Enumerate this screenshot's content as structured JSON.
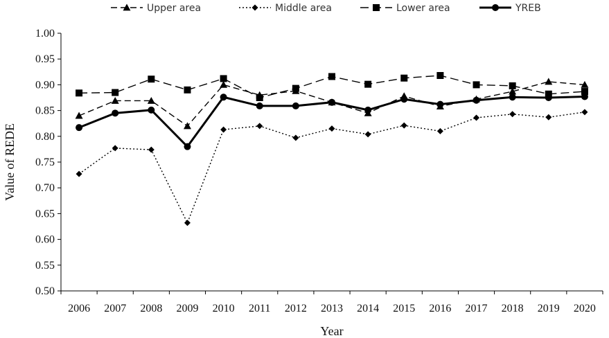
{
  "chart_data": {
    "type": "line",
    "xlabel": "Year",
    "ylabel": "Value of REDE",
    "ylim": [
      0.5,
      1.0
    ],
    "yticks": [
      "0.50",
      "0.55",
      "0.60",
      "0.65",
      "0.70",
      "0.75",
      "0.80",
      "0.85",
      "0.90",
      "0.95",
      "1.00"
    ],
    "categories": [
      "2006",
      "2007",
      "2008",
      "2009",
      "2010",
      "2011",
      "2012",
      "2013",
      "2014",
      "2015",
      "2016",
      "2017",
      "2018",
      "2019",
      "2020"
    ],
    "grid": false,
    "legend_position": "top",
    "series": [
      {
        "name": "Upper area",
        "marker": "triangle",
        "dash": "dashed",
        "values": [
          0.84,
          0.869,
          0.869,
          0.82,
          0.9,
          0.88,
          0.888,
          0.866,
          0.845,
          0.878,
          0.858,
          0.872,
          0.887,
          0.906,
          0.9
        ]
      },
      {
        "name": "Middle area",
        "marker": "diamond",
        "dash": "dotted",
        "values": [
          0.727,
          0.777,
          0.774,
          0.632,
          0.813,
          0.82,
          0.797,
          0.815,
          0.804,
          0.821,
          0.81,
          0.836,
          0.843,
          0.837,
          0.847
        ]
      },
      {
        "name": "Lower area",
        "marker": "square",
        "dash": "longdash",
        "values": [
          0.884,
          0.885,
          0.911,
          0.89,
          0.912,
          0.875,
          0.893,
          0.916,
          0.901,
          0.913,
          0.918,
          0.9,
          0.898,
          0.882,
          0.887
        ]
      },
      {
        "name": "YREB",
        "marker": "circle",
        "dash": "solid",
        "values": [
          0.817,
          0.845,
          0.851,
          0.78,
          0.876,
          0.859,
          0.859,
          0.866,
          0.851,
          0.872,
          0.862,
          0.87,
          0.876,
          0.875,
          0.877
        ]
      }
    ]
  }
}
